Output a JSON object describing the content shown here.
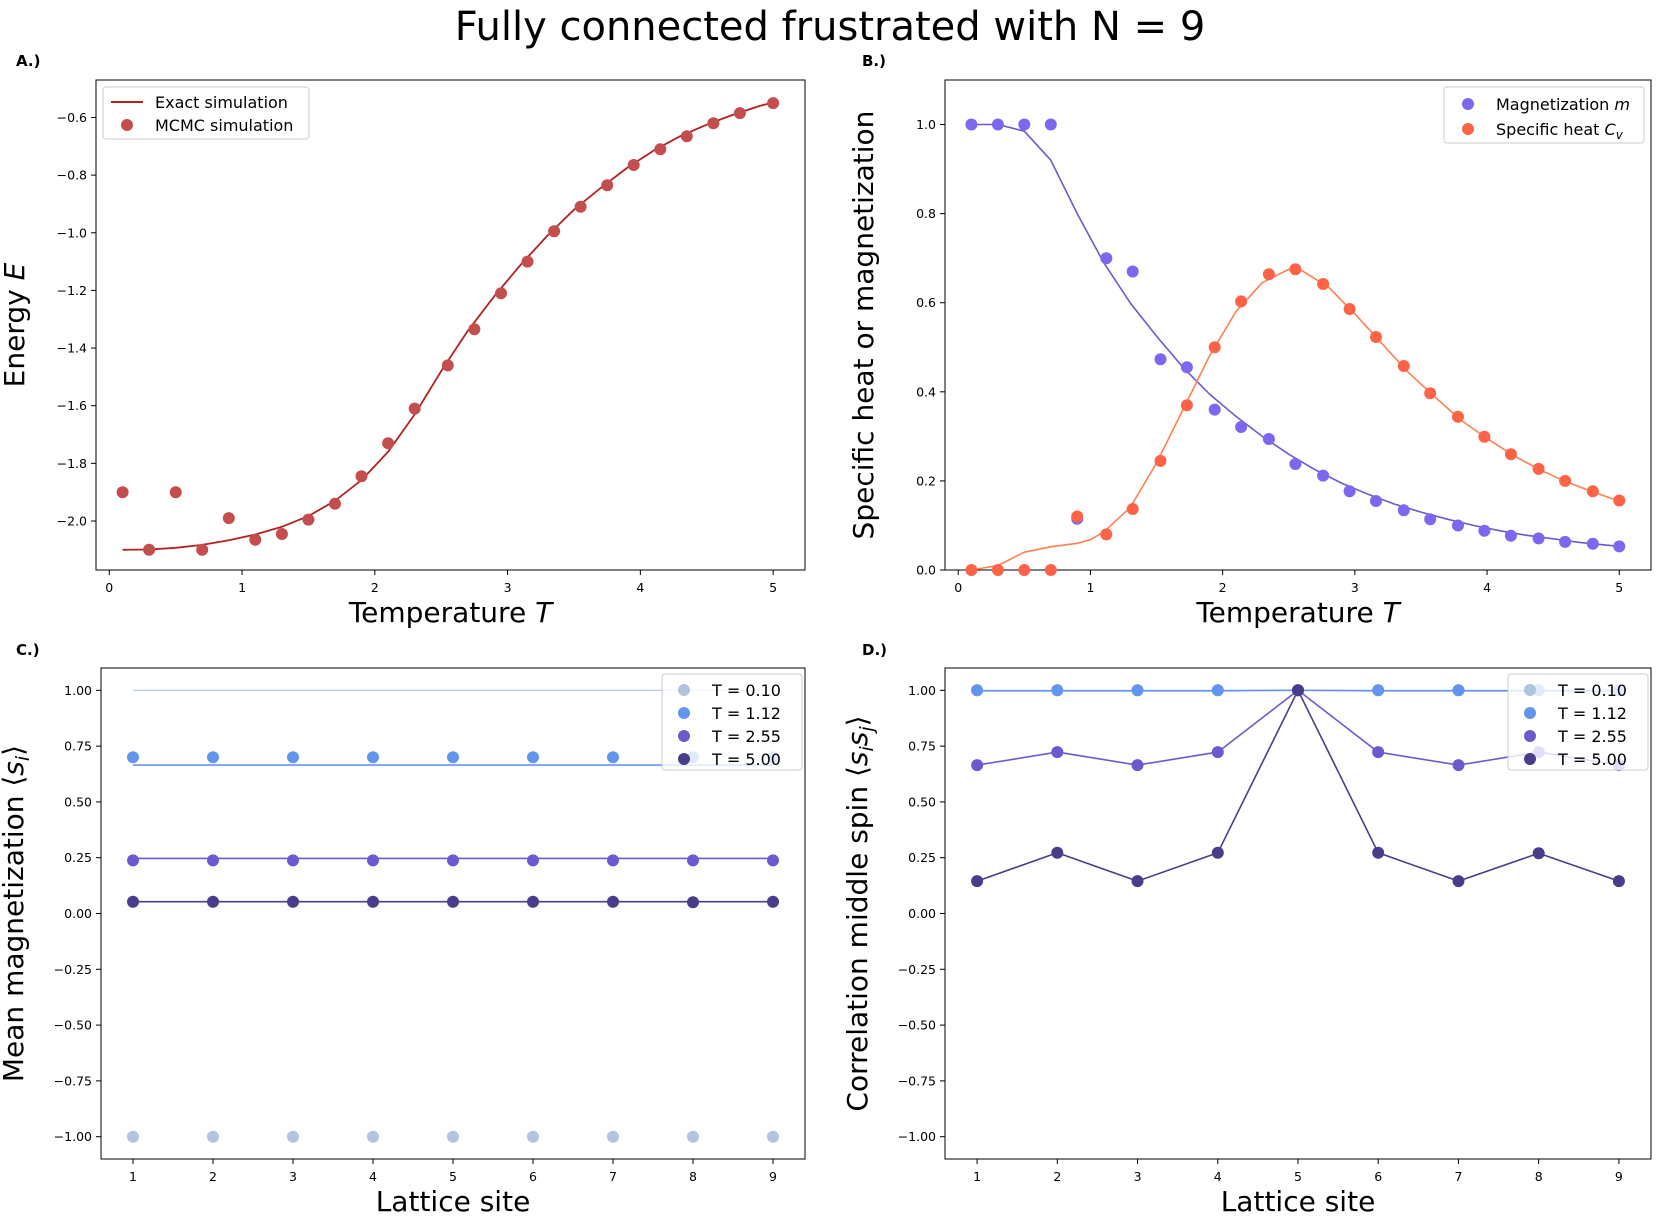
{
  "figure": {
    "title": "Fully connected frustrated with N = 9"
  },
  "panels": [
    {
      "label": "A.)"
    },
    {
      "label": "B.)"
    },
    {
      "label": "C.)"
    },
    {
      "label": "D.)"
    }
  ],
  "colors": {
    "exact": "#b22222",
    "mcmc": "#c44e4e",
    "magnetization": "#7b68ee",
    "magnetization_line": "#6a5acd",
    "specific_heat": "#ff6347",
    "specific_heat_line": "#ff7f50",
    "T010": "#b0c4de",
    "T112": "#6495ed",
    "T255": "#6a5acd",
    "T500": "#483d8b"
  },
  "chart_data": [
    {
      "type": "line",
      "panel": "A.)",
      "title": "",
      "xlabel": "Temperature T",
      "ylabel": "Energy E",
      "xlim": [
        -0.1,
        5.24
      ],
      "ylim": [
        -2.17,
        -0.47
      ],
      "xticks": [
        0,
        1,
        2,
        3,
        4,
        5
      ],
      "yticks": [
        -2.0,
        -1.8,
        -1.6,
        -1.4,
        -1.2,
        -1.0,
        -0.8,
        -0.6
      ],
      "ytick_labels": [
        "−2.0",
        "−1.8",
        "−1.6",
        "−1.4",
        "−1.2",
        "−1.0",
        "−0.8",
        "−0.6"
      ],
      "legend": {
        "position": "top-left",
        "entries": [
          "Exact simulation",
          "MCMC simulation"
        ]
      },
      "series": [
        {
          "name": "Exact simulation",
          "kind": "line",
          "x": [
            0.1,
            0.3,
            0.5,
            0.7,
            0.9,
            1.1,
            1.3,
            1.5,
            1.7,
            1.9,
            2.1,
            2.3,
            2.5,
            2.7,
            2.9,
            3.1,
            3.3,
            3.5,
            3.7,
            3.9,
            4.1,
            4.3,
            4.5,
            4.7,
            4.9,
            5.0
          ],
          "y": [
            -2.1,
            -2.099,
            -2.093,
            -2.083,
            -2.067,
            -2.047,
            -2.02,
            -1.983,
            -1.93,
            -1.858,
            -1.76,
            -1.63,
            -1.48,
            -1.34,
            -1.22,
            -1.11,
            -1.01,
            -0.92,
            -0.845,
            -0.775,
            -0.715,
            -0.665,
            -0.625,
            -0.59,
            -0.56,
            -0.548
          ]
        },
        {
          "name": "MCMC simulation",
          "kind": "scatter",
          "x": [
            0.1,
            0.3,
            0.5,
            0.7,
            0.9,
            1.1,
            1.3,
            1.5,
            1.7,
            1.9,
            2.1,
            2.3,
            2.55,
            2.75,
            2.95,
            3.15,
            3.35,
            3.55,
            3.75,
            3.95,
            4.15,
            4.35,
            4.55,
            4.75,
            5.0
          ],
          "y": [
            -1.9,
            -2.1,
            -1.9,
            -2.1,
            -1.99,
            -2.065,
            -2.045,
            -1.995,
            -1.94,
            -1.845,
            -1.73,
            -1.61,
            -1.46,
            -1.335,
            -1.21,
            -1.1,
            -0.995,
            -0.91,
            -0.835,
            -0.765,
            -0.71,
            -0.665,
            -0.62,
            -0.585,
            -0.55
          ]
        }
      ]
    },
    {
      "type": "line",
      "panel": "B.)",
      "title": "",
      "xlabel": "Temperature T",
      "ylabel": "Specific heat or magnetization",
      "xlim": [
        -0.1,
        5.24
      ],
      "ylim": [
        0.0,
        1.1
      ],
      "xticks": [
        0,
        1,
        2,
        3,
        4,
        5
      ],
      "yticks": [
        0.0,
        0.2,
        0.4,
        0.6,
        0.8,
        1.0
      ],
      "ytick_labels": [
        "0.0",
        "0.2",
        "0.4",
        "0.6",
        "0.8",
        "1.0"
      ],
      "legend": {
        "position": "top-right",
        "entries": [
          "Magnetization m",
          "Specific heat Cv"
        ]
      },
      "series": [
        {
          "name": "Magnetization m",
          "kind": "scatter",
          "x": [
            0.1,
            0.3,
            0.5,
            0.7,
            0.9,
            1.12,
            1.32,
            1.53,
            1.73,
            1.94,
            2.14,
            2.35,
            2.55,
            2.76,
            2.96,
            3.16,
            3.37,
            3.57,
            3.78,
            3.98,
            4.18,
            4.39,
            4.59,
            4.8,
            5.0
          ],
          "y": [
            1.0,
            1.0,
            1.0,
            1.0,
            0.115,
            0.7,
            0.67,
            0.473,
            0.455,
            0.36,
            0.321,
            0.294,
            0.238,
            0.212,
            0.177,
            0.155,
            0.134,
            0.114,
            0.1,
            0.088,
            0.077,
            0.071,
            0.063,
            0.059,
            0.053
          ]
        },
        {
          "name": "Magnetization m (fit)",
          "kind": "line",
          "x": [
            0.1,
            0.3,
            0.5,
            0.7,
            0.9,
            1.1,
            1.3,
            1.5,
            1.7,
            1.9,
            2.1,
            2.3,
            2.5,
            2.7,
            2.9,
            3.1,
            3.3,
            3.5,
            3.7,
            3.9,
            4.1,
            4.3,
            4.5,
            4.7,
            4.9,
            5.0
          ],
          "y": [
            1.0,
            1.0,
            0.985,
            0.92,
            0.8,
            0.69,
            0.6,
            0.525,
            0.455,
            0.395,
            0.345,
            0.3,
            0.26,
            0.225,
            0.195,
            0.17,
            0.148,
            0.13,
            0.114,
            0.1,
            0.088,
            0.078,
            0.07,
            0.062,
            0.056,
            0.053
          ]
        },
        {
          "name": "Specific heat Cv",
          "kind": "scatter",
          "x": [
            0.1,
            0.3,
            0.5,
            0.7,
            0.9,
            1.12,
            1.32,
            1.53,
            1.73,
            1.94,
            2.14,
            2.35,
            2.55,
            2.76,
            2.96,
            3.16,
            3.37,
            3.57,
            3.78,
            3.98,
            4.18,
            4.39,
            4.59,
            4.8,
            5.0
          ],
          "y": [
            0.0,
            0.0,
            0.0,
            0.0,
            0.12,
            0.08,
            0.137,
            0.245,
            0.37,
            0.5,
            0.603,
            0.664,
            0.675,
            0.642,
            0.586,
            0.523,
            0.458,
            0.397,
            0.344,
            0.299,
            0.26,
            0.227,
            0.2,
            0.177,
            0.156
          ]
        },
        {
          "name": "Specific heat Cv (fit)",
          "kind": "line",
          "x": [
            0.1,
            0.3,
            0.5,
            0.7,
            0.9,
            1.0,
            1.1,
            1.3,
            1.5,
            1.7,
            1.9,
            2.1,
            2.3,
            2.5,
            2.6,
            2.8,
            3.0,
            3.2,
            3.4,
            3.6,
            3.8,
            4.0,
            4.2,
            4.4,
            4.6,
            4.8,
            5.0
          ],
          "y": [
            0.0,
            0.01,
            0.04,
            0.052,
            0.06,
            0.068,
            0.085,
            0.14,
            0.24,
            0.36,
            0.48,
            0.58,
            0.645,
            0.675,
            0.672,
            0.635,
            0.575,
            0.51,
            0.445,
            0.39,
            0.337,
            0.295,
            0.257,
            0.225,
            0.198,
            0.175,
            0.155
          ]
        }
      ]
    },
    {
      "type": "line",
      "panel": "C.)",
      "title": "",
      "xlabel": "Lattice site",
      "ylabel": "Mean magnetization ⟨sᵢ⟩",
      "xlim": [
        0.6,
        9.4
      ],
      "ylim": [
        -1.1,
        1.1
      ],
      "xticks": [
        1,
        2,
        3,
        4,
        5,
        6,
        7,
        8,
        9
      ],
      "yticks": [
        -1.0,
        -0.75,
        -0.5,
        -0.25,
        0.0,
        0.25,
        0.5,
        0.75,
        1.0
      ],
      "ytick_labels": [
        "−1.00",
        "−0.75",
        "−0.50",
        "−0.25",
        "0.00",
        "0.25",
        "0.50",
        "0.75",
        "1.00"
      ],
      "legend": {
        "position": "top-right",
        "entries": [
          "T = 0.10",
          "T = 1.12",
          "T = 2.55",
          "T = 5.00"
        ]
      },
      "x": [
        1,
        2,
        3,
        4,
        5,
        6,
        7,
        8,
        9
      ],
      "series": [
        {
          "name": "T = 0.10",
          "points": [
            -1.0,
            -1.0,
            -1.0,
            -1.0,
            -1.0,
            -1.0,
            -1.0,
            -1.0,
            -1.0
          ],
          "line": [
            1.0,
            1.0,
            1.0,
            1.0,
            1.0,
            1.0,
            1.0,
            1.0,
            1.0
          ]
        },
        {
          "name": "T = 1.12",
          "points": [
            0.7,
            0.7,
            0.7,
            0.7,
            0.7,
            0.7,
            0.7,
            0.7,
            0.7
          ],
          "line": [
            0.665,
            0.665,
            0.665,
            0.665,
            0.665,
            0.665,
            0.665,
            0.665,
            0.665
          ]
        },
        {
          "name": "T = 2.55",
          "points": [
            0.238,
            0.238,
            0.238,
            0.238,
            0.238,
            0.238,
            0.238,
            0.238,
            0.238
          ],
          "line": [
            0.247,
            0.247,
            0.247,
            0.247,
            0.247,
            0.247,
            0.247,
            0.247,
            0.247
          ]
        },
        {
          "name": "T = 5.00",
          "points": [
            0.053,
            0.053,
            0.053,
            0.053,
            0.053,
            0.053,
            0.053,
            0.05,
            0.053
          ],
          "line": [
            0.053,
            0.053,
            0.053,
            0.053,
            0.053,
            0.053,
            0.053,
            0.053,
            0.053
          ]
        }
      ]
    },
    {
      "type": "line",
      "panel": "D.)",
      "title": "",
      "xlabel": "Lattice site",
      "ylabel": "Correlation middle spin ⟨sᵢsⱼ⟩",
      "xlim": [
        0.6,
        9.4
      ],
      "ylim": [
        -1.1,
        1.1
      ],
      "xticks": [
        1,
        2,
        3,
        4,
        5,
        6,
        7,
        8,
        9
      ],
      "yticks": [
        -1.0,
        -0.75,
        -0.5,
        -0.25,
        0.0,
        0.25,
        0.5,
        0.75,
        1.0
      ],
      "ytick_labels": [
        "−1.00",
        "−0.75",
        "−0.50",
        "−0.25",
        "0.00",
        "0.25",
        "0.50",
        "0.75",
        "1.00"
      ],
      "legend": {
        "position": "top-right",
        "entries": [
          "T = 0.10",
          "T = 1.12",
          "T = 2.55",
          "T = 5.00"
        ]
      },
      "x": [
        1,
        2,
        3,
        4,
        5,
        6,
        7,
        8,
        9
      ],
      "series": [
        {
          "name": "T = 0.10",
          "points": [
            1.0,
            1.0,
            1.0,
            1.0,
            1.0,
            1.0,
            1.0,
            1.0,
            1.0
          ],
          "line": [
            1.0,
            1.0,
            1.0,
            1.0,
            1.0,
            1.0,
            1.0,
            1.0,
            1.0
          ]
        },
        {
          "name": "T = 1.12",
          "points": [
            1.0,
            1.0,
            1.0,
            1.0,
            1.0,
            1.0,
            1.0,
            1.0,
            1.0
          ],
          "line": [
            0.998,
            0.998,
            0.998,
            0.998,
            1.0,
            0.998,
            0.998,
            0.998,
            0.998
          ]
        },
        {
          "name": "T = 2.55",
          "points": [
            0.665,
            0.723,
            0.665,
            0.723,
            1.0,
            0.723,
            0.665,
            0.723,
            0.665
          ],
          "line": [
            0.665,
            0.723,
            0.665,
            0.723,
            1.0,
            0.723,
            0.665,
            0.723,
            0.665
          ]
        },
        {
          "name": "T = 5.00",
          "points": [
            0.145,
            0.272,
            0.145,
            0.272,
            1.0,
            0.272,
            0.145,
            0.27,
            0.145
          ],
          "line": [
            0.145,
            0.272,
            0.145,
            0.272,
            1.0,
            0.272,
            0.145,
            0.27,
            0.145
          ]
        }
      ]
    }
  ]
}
